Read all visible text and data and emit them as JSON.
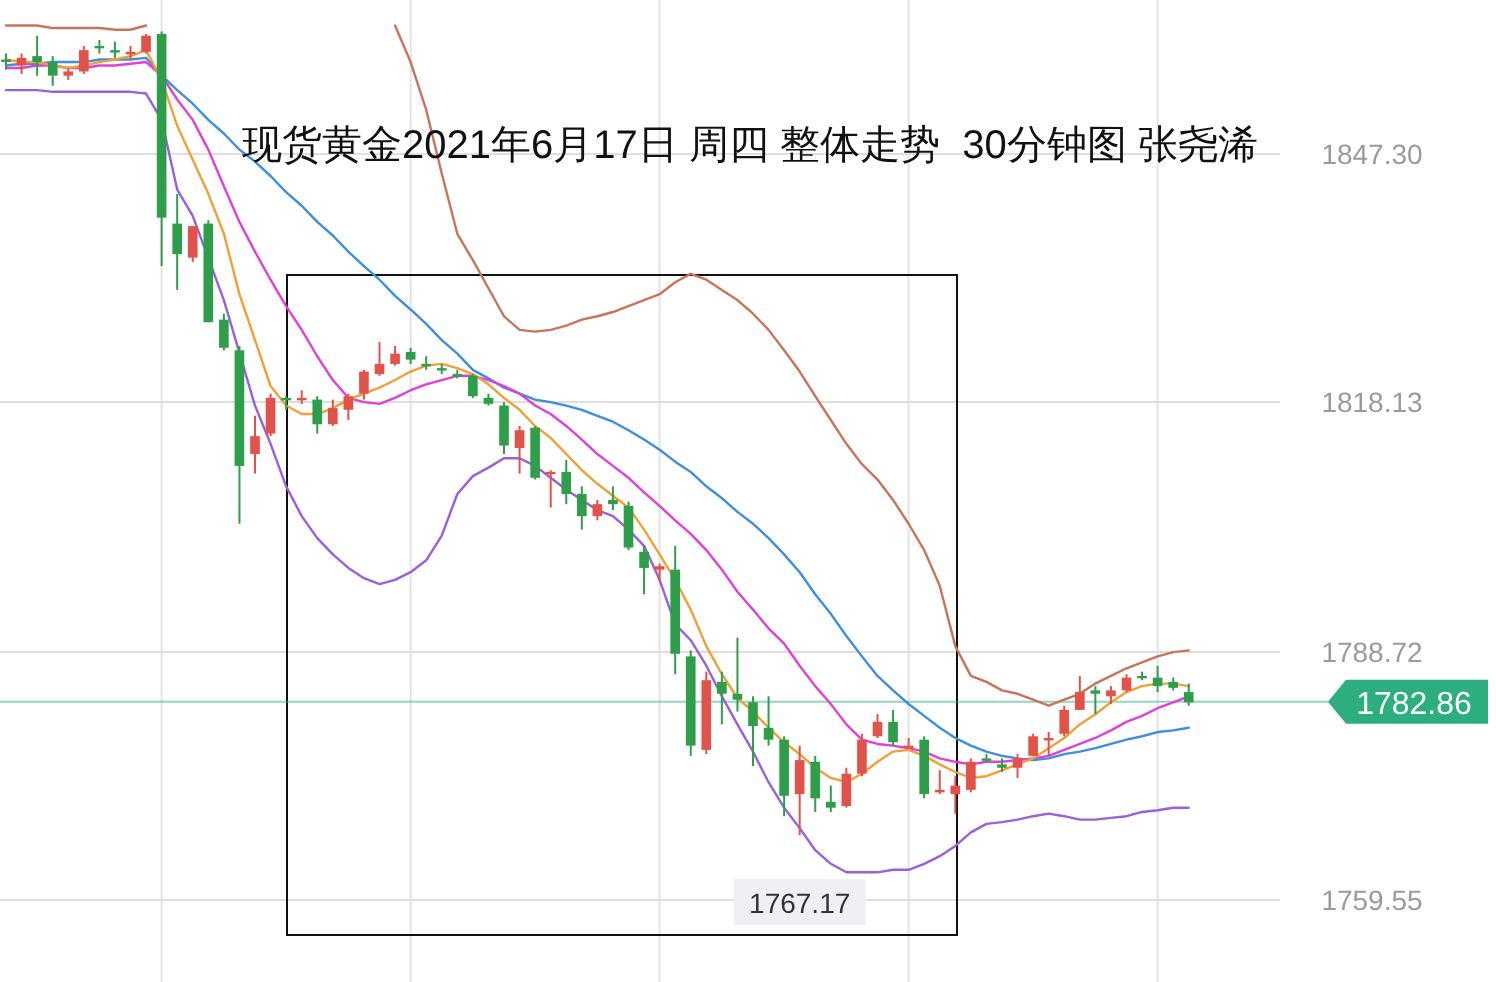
{
  "chart_data": {
    "type": "candlestick",
    "title": "现货黄金2021年6月17日 周四 整体走势  30分钟图 张尧浠",
    "categories": [
      null,
      null,
      null,
      null,
      null,
      null,
      null,
      null,
      null,
      null,
      null,
      null,
      null,
      null,
      null,
      null,
      null,
      null,
      null,
      null,
      null,
      null,
      null,
      null,
      null,
      null,
      null,
      null,
      null,
      null,
      null,
      null,
      null,
      null,
      null,
      null,
      null,
      null,
      null,
      null,
      null,
      null,
      null,
      null,
      null,
      null,
      null,
      null,
      null,
      null,
      null,
      null,
      null,
      null,
      null,
      null,
      null,
      null,
      null,
      null,
      null,
      null,
      null,
      null,
      null,
      null,
      null,
      null,
      null,
      null,
      null,
      null,
      null,
      null,
      null,
      null,
      null
    ],
    "ohlc": [
      [
        1858.4,
        1859.1,
        1857.2,
        1858.1
      ],
      [
        1857.7,
        1859.1,
        1856.7,
        1858.6
      ],
      [
        1858.8,
        1861.2,
        1856.5,
        1858.1
      ],
      [
        1858.1,
        1858.8,
        1855.3,
        1856.5
      ],
      [
        1856.5,
        1857.4,
        1856.0,
        1857.0
      ],
      [
        1857.0,
        1860.0,
        1856.7,
        1859.5
      ],
      [
        1860.0,
        1860.7,
        1859.1,
        1859.8
      ],
      [
        1859.5,
        1860.5,
        1858.6,
        1859.3
      ],
      [
        1859.1,
        1860.0,
        1858.4,
        1859.3
      ],
      [
        1859.3,
        1861.4,
        1859.1,
        1861.2
      ],
      [
        1861.4,
        1861.7,
        1834.1,
        1839.8
      ],
      [
        1839.1,
        1842.6,
        1831.3,
        1835.5
      ],
      [
        1835.1,
        1838.8,
        1834.6,
        1838.8
      ],
      [
        1839.1,
        1839.5,
        1827.5,
        1827.5
      ],
      [
        1827.8,
        1828.5,
        1824.2,
        1824.5
      ],
      [
        1824.2,
        1824.7,
        1803.8,
        1810.6
      ],
      [
        1812.0,
        1816.5,
        1809.7,
        1814.1
      ],
      [
        1814.4,
        1819.1,
        1814.1,
        1818.6
      ],
      [
        1818.6,
        1818.8,
        1817.2,
        1818.4
      ],
      [
        1818.4,
        1819.5,
        1817.9,
        1818.6
      ],
      [
        1818.4,
        1818.8,
        1814.4,
        1815.5
      ],
      [
        1815.5,
        1818.4,
        1815.3,
        1817.4
      ],
      [
        1817.2,
        1819.1,
        1816.0,
        1818.8
      ],
      [
        1819.1,
        1821.9,
        1818.4,
        1821.7
      ],
      [
        1821.4,
        1825.2,
        1821.2,
        1822.6
      ],
      [
        1822.6,
        1824.7,
        1822.4,
        1823.8
      ],
      [
        1824.0,
        1824.5,
        1822.6,
        1823.1
      ],
      [
        1822.6,
        1823.5,
        1821.9,
        1822.4
      ],
      [
        1822.1,
        1822.6,
        1821.4,
        1821.9
      ],
      [
        1821.4,
        1821.9,
        1820.9,
        1821.2
      ],
      [
        1821.2,
        1821.4,
        1818.6,
        1818.8
      ],
      [
        1818.6,
        1819.1,
        1817.7,
        1817.9
      ],
      [
        1817.7,
        1818.1,
        1812.0,
        1813.0
      ],
      [
        1812.7,
        1815.3,
        1809.7,
        1814.8
      ],
      [
        1815.1,
        1815.3,
        1809.0,
        1809.2
      ],
      [
        1809.7,
        1810.1,
        1805.7,
        1809.9
      ],
      [
        1809.9,
        1811.3,
        1806.1,
        1807.3
      ],
      [
        1807.3,
        1808.2,
        1803.1,
        1804.7
      ],
      [
        1804.7,
        1806.6,
        1804.2,
        1806.1
      ],
      [
        1806.6,
        1808.2,
        1805.4,
        1806.1
      ],
      [
        1805.9,
        1806.4,
        1800.7,
        1801.0
      ],
      [
        1800.5,
        1801.2,
        1795.5,
        1798.6
      ],
      [
        1798.4,
        1799.1,
        1797.2,
        1798.8
      ],
      [
        1798.4,
        1801.2,
        1786.1,
        1788.5
      ],
      [
        1788.2,
        1788.9,
        1776.5,
        1777.7
      ],
      [
        1777.2,
        1786.4,
        1776.7,
        1785.4
      ],
      [
        1785.2,
        1786.4,
        1780.2,
        1783.8
      ],
      [
        1783.8,
        1790.4,
        1781.7,
        1783.1
      ],
      [
        1782.8,
        1783.5,
        1775.3,
        1780.0
      ],
      [
        1779.8,
        1783.5,
        1777.7,
        1778.4
      ],
      [
        1778.4,
        1778.8,
        1769.4,
        1771.8
      ],
      [
        1772.0,
        1777.7,
        1767.17,
        1776.0
      ],
      [
        1775.8,
        1776.5,
        1769.9,
        1771.5
      ],
      [
        1771.1,
        1773.0,
        1769.9,
        1770.4
      ],
      [
        1770.6,
        1775.1,
        1770.4,
        1774.4
      ],
      [
        1774.4,
        1779.1,
        1774.1,
        1778.4
      ],
      [
        1778.8,
        1781.4,
        1778.6,
        1780.5
      ],
      [
        1780.5,
        1781.9,
        1777.7,
        1778.1
      ],
      [
        1777.4,
        1778.6,
        1777.4,
        1777.7
      ],
      [
        1778.4,
        1778.8,
        1771.5,
        1772.0
      ],
      [
        1772.2,
        1774.8,
        1772.0,
        1772.5
      ],
      [
        1772.0,
        1774.1,
        1769.7,
        1773.0
      ],
      [
        1772.5,
        1776.2,
        1772.2,
        1775.8
      ],
      [
        1776.2,
        1776.7,
        1775.8,
        1776.0
      ],
      [
        1775.5,
        1776.2,
        1774.6,
        1775.1
      ],
      [
        1775.1,
        1776.7,
        1773.9,
        1776.2
      ],
      [
        1776.5,
        1779.1,
        1776.5,
        1778.8
      ],
      [
        1778.4,
        1779.3,
        1776.5,
        1778.6
      ],
      [
        1779.1,
        1782.4,
        1778.8,
        1781.9
      ],
      [
        1781.9,
        1785.9,
        1781.9,
        1784.0
      ],
      [
        1784.2,
        1784.7,
        1781.4,
        1783.8
      ],
      [
        1783.5,
        1784.7,
        1782.6,
        1784.2
      ],
      [
        1784.2,
        1786.1,
        1784.0,
        1785.7
      ],
      [
        1785.9,
        1786.4,
        1785.4,
        1785.7
      ],
      [
        1785.7,
        1787.1,
        1784.0,
        1784.7
      ],
      [
        1785.2,
        1785.7,
        1784.2,
        1784.5
      ],
      [
        1784.0,
        1785.0,
        1782.4,
        1782.8
      ]
    ],
    "series": [
      {
        "type": "line",
        "color": "#c8745c",
        "values": [
          1862.4,
          1862.4,
          1862.4,
          1862.1,
          1862.1,
          1862.1,
          1862.1,
          1861.9,
          1861.9,
          1862.4,
          null,
          null,
          null,
          null,
          null,
          null,
          null,
          null,
          null,
          null,
          null,
          null,
          null,
          null,
          null,
          1862.4,
          1858.1,
          1852.5,
          1845.0,
          1837.9,
          1834.8,
          1831.5,
          1828.2,
          1826.6,
          1826.4,
          1826.6,
          1827.1,
          1827.8,
          1828.2,
          1828.7,
          1829.4,
          1830.1,
          1830.8,
          1832.2,
          1833.2,
          1832.5,
          1831.3,
          1830.1,
          1828.5,
          1826.6,
          1824.2,
          1821.7,
          1818.8,
          1816.0,
          1813.2,
          1810.8,
          1809.0,
          1806.6,
          1803.8,
          1800.7,
          1796.5,
          1789.4,
          1785.9,
          1785.2,
          1784.2,
          1783.8,
          1783.1,
          1782.4,
          1783.1,
          1783.8,
          1785.0,
          1785.9,
          1786.8,
          1787.5,
          1788.2,
          1788.7,
          1788.9
        ]
      },
      {
        "type": "line",
        "color": "#3d8fdc",
        "values": [
          1857.7,
          1857.9,
          1857.9,
          1858.1,
          1858.1,
          1858.1,
          1858.4,
          1858.4,
          1858.4,
          1858.6,
          1856.5,
          1854.8,
          1853.2,
          1851.3,
          1849.7,
          1847.8,
          1846.4,
          1844.7,
          1842.8,
          1841.2,
          1839.3,
          1837.7,
          1835.8,
          1834.1,
          1832.5,
          1830.6,
          1829.0,
          1827.3,
          1825.4,
          1823.8,
          1821.9,
          1820.9,
          1819.8,
          1819.1,
          1818.4,
          1818.1,
          1817.7,
          1817.2,
          1816.5,
          1815.8,
          1814.8,
          1813.7,
          1812.5,
          1811.1,
          1809.9,
          1808.2,
          1806.8,
          1805.2,
          1803.8,
          1802.1,
          1800.2,
          1798.1,
          1795.5,
          1793.2,
          1790.6,
          1788.2,
          1785.9,
          1784.2,
          1782.6,
          1781.2,
          1779.8,
          1778.6,
          1777.7,
          1777.0,
          1776.5,
          1776.2,
          1776.0,
          1776.2,
          1776.7,
          1777.0,
          1777.4,
          1777.9,
          1778.4,
          1778.8,
          1779.3,
          1779.5,
          1779.8
        ]
      },
      {
        "type": "line",
        "color": "#9b5fd8",
        "values": [
          1854.8,
          1854.8,
          1854.8,
          1854.6,
          1854.6,
          1854.6,
          1854.6,
          1854.6,
          1854.6,
          1854.4,
          1851.3,
          1843.1,
          1840.0,
          null,
          1830.1,
          null,
          1817.7,
          1813.2,
          1808.2,
          1804.7,
          1802.1,
          1800.2,
          1798.6,
          1797.4,
          1796.7,
          1797.2,
          1798.1,
          1799.5,
          1802.4,
          1807.3,
          1809.4,
          1810.4,
          1811.5,
          1811.5,
          1810.6,
          1809.2,
          1807.8,
          1806.6,
          1805.4,
          1804.7,
          1803.1,
          1801.2,
          1797.2,
          1792.0,
          1790.1,
          1787.1,
          1783.5,
          1780.2,
          1777.0,
          1773.4,
          1770.4,
          1768.0,
          1765.4,
          1763.8,
          1762.8,
          1762.8,
          1762.8,
          1763.1,
          1763.1,
          1763.8,
          1764.7,
          1765.9,
          1767.5,
          1768.5,
          1768.7,
          1769.0,
          1769.4,
          1769.7,
          1769.4,
          1769.0,
          1769.0,
          1769.2,
          1769.4,
          1769.9,
          1770.1,
          1770.4,
          1770.4
        ]
      },
      {
        "type": "line",
        "color": "#e040d8",
        "values": [
          1857.4,
          1857.4,
          1857.7,
          1857.7,
          1857.4,
          1857.4,
          1857.7,
          1857.7,
          1857.9,
          1858.1,
          1856.5,
          1853.7,
          1851.3,
          1847.8,
          1843.5,
          1839.3,
          1835.8,
          1832.5,
          1829.4,
          1826.6,
          1823.5,
          1820.7,
          1818.6,
          1818.1,
          1817.9,
          1818.6,
          1819.5,
          1820.2,
          1820.7,
          1821.2,
          1821.2,
          1820.7,
          1820.0,
          1819.1,
          1817.7,
          1816.7,
          1815.3,
          1813.7,
          1812.0,
          1810.6,
          1809.2,
          1807.5,
          1805.9,
          1804.2,
          1802.6,
          1800.7,
          1798.4,
          1795.8,
          1793.7,
          1791.5,
          1789.7,
          1787.1,
          1784.7,
          1782.6,
          1780.2,
          1778.4,
          1777.9,
          1777.7,
          1777.4,
          1777.0,
          1776.2,
          1775.8,
          1775.5,
          1775.8,
          1775.8,
          1776.0,
          1776.2,
          1776.5,
          1777.2,
          1777.9,
          1778.6,
          1779.5,
          1780.5,
          1781.2,
          1782.1,
          1782.8,
          1783.5
        ]
      },
      {
        "type": "line",
        "color": "#f0a035",
        "values": [
          1858.4,
          1858.1,
          1858.1,
          1857.7,
          1857.4,
          1857.7,
          1858.1,
          1858.4,
          1858.8,
          1859.5,
          1856.0,
          1850.6,
          1846.6,
          1842.6,
          1837.9,
          1830.8,
          1825.4,
          1820.0,
          1817.7,
          1816.7,
          1816.7,
          1817.4,
          1818.4,
          1819.1,
          1819.8,
          1820.7,
          1821.7,
          1822.4,
          1822.6,
          1822.1,
          1821.4,
          1820.2,
          1818.6,
          1817.2,
          1815.3,
          1813.9,
          1812.0,
          1810.1,
          1808.5,
          1807.1,
          1805.7,
          1803.1,
          1800.2,
          1797.2,
          1793.7,
          1789.4,
          1786.1,
          1783.3,
          1781.7,
          1779.8,
          1778.1,
          1776.7,
          1775.1,
          1773.9,
          1773.4,
          1774.4,
          1775.8,
          1777.0,
          1777.2,
          1776.5,
          1775.5,
          1774.6,
          1773.9,
          1774.1,
          1774.8,
          1775.5,
          1776.2,
          1777.4,
          1778.6,
          1780.2,
          1781.4,
          1782.8,
          1784.0,
          1784.7,
          1785.0,
          1785.0,
          1784.7
        ]
      }
    ],
    "ylim": [
      1749.9,
      1865.4
    ],
    "yticks": [
      {
        "value": 1847.3,
        "label": "1847.30"
      },
      1818.13,
      1788.72,
      1759.55
    ],
    "grid": true,
    "ref_lines": [
      {
        "axis": "y",
        "value": 1782.86,
        "label": "1782.86",
        "color": "#2dae7f"
      }
    ],
    "annotations": [
      {
        "text": "1767.17",
        "y": 1767.17
      }
    ]
  }
}
